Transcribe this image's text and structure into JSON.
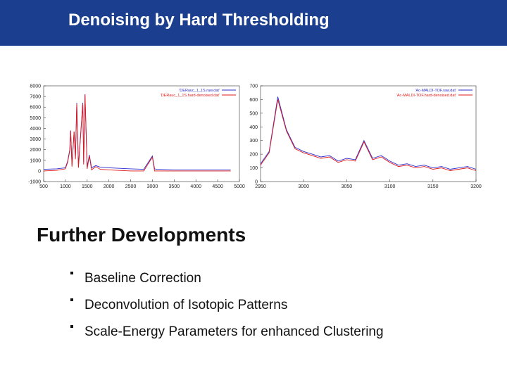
{
  "header": {
    "title": "Denoising by Hard Thresholding"
  },
  "charts": [
    {
      "type": "line",
      "xlim": [
        500,
        5000
      ],
      "xticks": [
        500,
        1000,
        1500,
        2000,
        2500,
        3000,
        3500,
        4000,
        4500,
        5000
      ],
      "ylim": [
        -1000,
        8000
      ],
      "yticks": [
        -1000,
        0,
        1000,
        2000,
        3000,
        4000,
        5000,
        6000,
        7000,
        8000
      ],
      "x": [
        500,
        800,
        1000,
        1050,
        1100,
        1120,
        1150,
        1200,
        1230,
        1260,
        1300,
        1400,
        1420,
        1450,
        1500,
        1550,
        1600,
        1700,
        1800,
        2000,
        2200,
        2500,
        2800,
        3000,
        3050,
        3100,
        3500,
        4000,
        4500,
        4800
      ],
      "series": [
        {
          "name": "'DERauc_1_1S.raw.dat'",
          "color": "#2b2bd0",
          "values": [
            150,
            200,
            300,
            900,
            2000,
            3800,
            600,
            3700,
            1200,
            6400,
            500,
            6400,
            800,
            7200,
            400,
            1500,
            300,
            500,
            350,
            300,
            250,
            200,
            150,
            1400,
            200,
            150,
            100,
            100,
            100,
            100
          ]
        },
        {
          "name": "'DERauc_1_1S.hard-denoised.dat'",
          "color": "#e01818",
          "values": [
            0,
            50,
            200,
            800,
            1900,
            3800,
            400,
            3700,
            1100,
            6300,
            300,
            6300,
            600,
            7200,
            200,
            1400,
            100,
            400,
            150,
            100,
            50,
            0,
            0,
            1300,
            0,
            0,
            0,
            0,
            0,
            0
          ]
        }
      ]
    },
    {
      "type": "line",
      "xlim": [
        2950,
        3200
      ],
      "xticks": [
        2950,
        3000,
        3050,
        3100,
        3150,
        3200
      ],
      "ylim": [
        0,
        700
      ],
      "yticks": [
        0,
        100,
        200,
        300,
        400,
        500,
        600,
        700
      ],
      "x": [
        2950,
        2960,
        2970,
        2980,
        2990,
        3000,
        3010,
        3020,
        3030,
        3040,
        3050,
        3060,
        3070,
        3080,
        3090,
        3100,
        3110,
        3120,
        3130,
        3140,
        3150,
        3160,
        3170,
        3180,
        3190,
        3200
      ],
      "series": [
        {
          "name": "'Ac-MALDI-TOF.raw.dat'",
          "color": "#2b2bd0",
          "values": [
            130,
            220,
            620,
            380,
            250,
            220,
            200,
            180,
            190,
            150,
            170,
            160,
            300,
            170,
            190,
            150,
            120,
            130,
            110,
            120,
            100,
            110,
            90,
            100,
            110,
            90
          ]
        },
        {
          "name": "'Ac-MALDI-TOF.hard-denoised.dat'",
          "color": "#e01818",
          "values": [
            120,
            210,
            600,
            370,
            240,
            210,
            190,
            170,
            180,
            140,
            160,
            150,
            290,
            160,
            180,
            140,
            110,
            120,
            100,
            110,
            90,
            100,
            80,
            90,
            100,
            80
          ]
        }
      ]
    }
  ],
  "section": {
    "title": "Further Developments",
    "bullets": [
      "Baseline Correction",
      "Deconvolution of Isotopic Patterns",
      "Scale-Energy Parameters for enhanced Clustering"
    ]
  }
}
